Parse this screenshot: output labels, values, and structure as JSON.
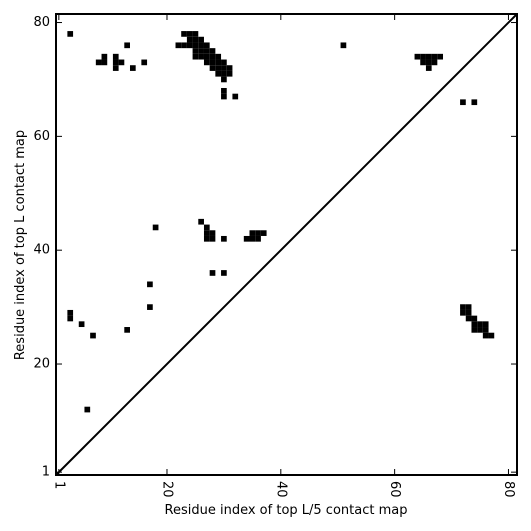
{
  "chart_data": {
    "type": "scatter",
    "marker": "square",
    "color": "#000000",
    "xlabel": "Residue index of top L/5 contact map",
    "ylabel": "Residue index of top L contact map",
    "xlim": [
      0.5,
      81.5
    ],
    "ylim": [
      0.5,
      81.5
    ],
    "xticks": [
      1,
      20,
      40,
      60,
      80
    ],
    "yticks": [
      1,
      20,
      40,
      60,
      80
    ],
    "diagonal": true,
    "x": [
      3,
      13,
      9,
      8,
      9,
      11,
      11,
      11,
      12,
      14,
      16,
      23,
      24,
      25,
      22,
      23,
      24,
      24,
      25,
      25,
      26,
      26,
      25,
      26,
      27,
      27,
      25,
      26,
      27,
      28,
      28,
      27,
      28,
      29,
      29,
      28,
      29,
      30,
      30,
      29,
      30,
      31,
      31,
      30,
      30,
      30,
      32,
      51,
      64,
      65,
      66,
      67,
      68,
      65,
      66,
      67,
      66,
      72,
      74,
      26,
      18,
      27,
      27,
      28,
      27,
      28,
      30,
      35,
      36,
      37,
      34,
      35,
      36,
      28,
      30,
      17,
      17,
      13,
      3,
      3,
      5,
      7,
      6,
      72,
      73,
      72,
      73,
      73,
      74,
      74,
      75,
      76,
      74,
      75,
      76,
      76,
      77
    ],
    "y": [
      78,
      76,
      74,
      73,
      73,
      73,
      74,
      72,
      73,
      72,
      73,
      78,
      78,
      78,
      76,
      76,
      77,
      76,
      77,
      76,
      77,
      76,
      75,
      75,
      76,
      75,
      74,
      74,
      74,
      75,
      74,
      73,
      73,
      74,
      73,
      72,
      72,
      73,
      72,
      71,
      71,
      72,
      71,
      70,
      68,
      67,
      67,
      76,
      74,
      74,
      74,
      74,
      74,
      73,
      73,
      73,
      72,
      66,
      66,
      45,
      44,
      44,
      43,
      43,
      42,
      42,
      42,
      43,
      43,
      43,
      42,
      42,
      42,
      36,
      36,
      34,
      30,
      26,
      29,
      28,
      27,
      25,
      12,
      30,
      30,
      29,
      29,
      28,
      28,
      27,
      27,
      27,
      26,
      26,
      26,
      25,
      25
    ]
  }
}
